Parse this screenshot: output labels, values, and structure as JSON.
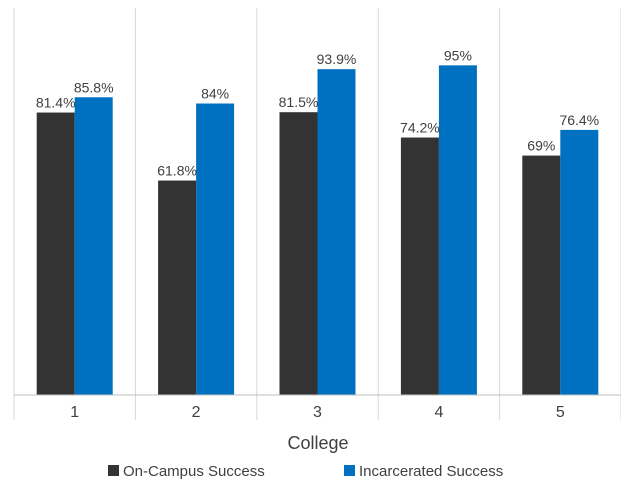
{
  "chart_data": {
    "type": "bar",
    "categories": [
      "1",
      "2",
      "3",
      "4",
      "5"
    ],
    "series": [
      {
        "name": "On-Campus Success",
        "values": [
          81.4,
          61.8,
          81.5,
          74.2,
          69
        ],
        "labels": [
          "81.4%",
          "61.8%",
          "81.5%",
          "74.2%",
          "69%"
        ],
        "color": "#333333"
      },
      {
        "name": "Incarcerated Success",
        "values": [
          85.8,
          84,
          93.9,
          95,
          76.4
        ],
        "labels": [
          "85.8%",
          "84%",
          "93.9%",
          "95%",
          "76.4%"
        ],
        "color": "#0070C0"
      }
    ],
    "xlabel": "College",
    "ylabel": "",
    "ylim": [
      0,
      100
    ],
    "grid": "vertical separators",
    "legend": "bottom"
  }
}
